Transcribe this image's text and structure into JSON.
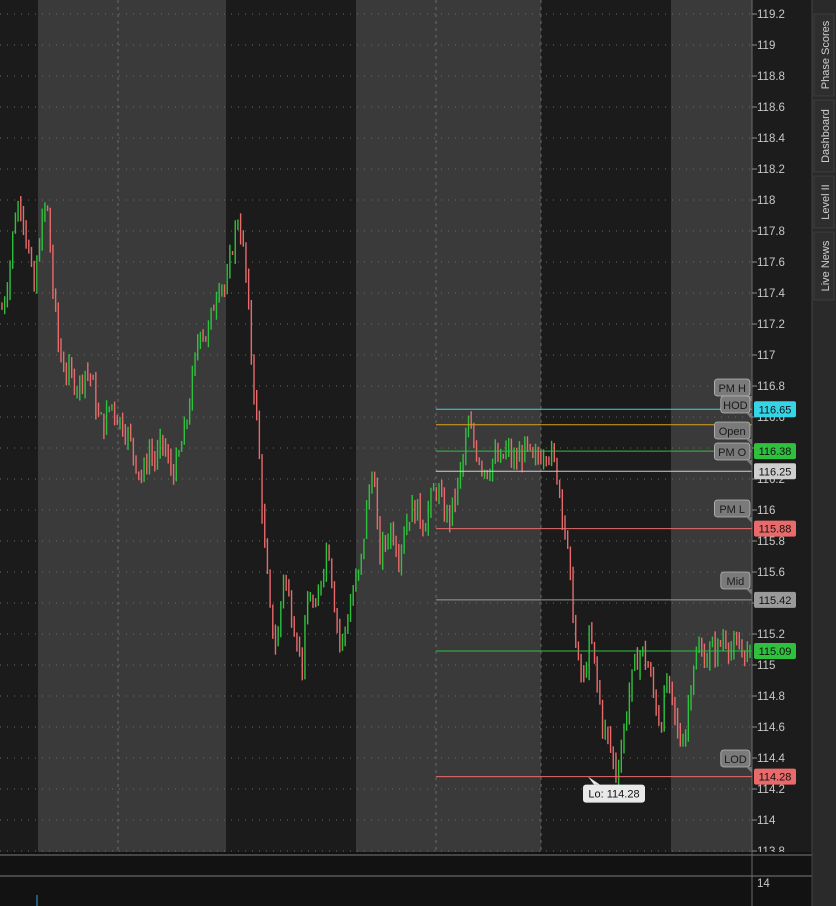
{
  "chart_data": {
    "type": "candlestick",
    "ylim": [
      113.8,
      119.2
    ],
    "y_ticks": [
      "113.8",
      "114",
      "114.2",
      "114.4",
      "114.6",
      "114.8",
      "115",
      "115.2",
      "115.4",
      "115.6",
      "115.8",
      "116",
      "116.2",
      "116.4",
      "116.6",
      "116.8",
      "117",
      "117.2",
      "117.4",
      "117.6",
      "117.8",
      "118",
      "118.2",
      "118.4",
      "118.6",
      "118.8",
      "119",
      "119.2"
    ],
    "lower_axis_label": "14",
    "levels": [
      {
        "name": "PM H",
        "value": 116.65,
        "color": "#35d4e6",
        "price_label": "",
        "text_color": "#111111"
      },
      {
        "name": "HOD",
        "value": 116.65,
        "color": "#35d4e6",
        "price_label": "116.65",
        "text_color": "#111111"
      },
      {
        "name": "Open",
        "value": 116.55,
        "color": "#d9a21a",
        "price_label": "",
        "text_color": "#111111"
      },
      {
        "name": "PM O",
        "value": 116.38,
        "color": "#2fc03e",
        "price_label": "116.38",
        "text_color": "#111111"
      },
      {
        "name": "",
        "value": 116.25,
        "color": "#cfcfcf",
        "price_label": "116.25",
        "text_color": "#111111"
      },
      {
        "name": "PM L",
        "value": 115.88,
        "color": "#e86a6a",
        "price_label": "115.88",
        "text_color": "#111111"
      },
      {
        "name": "Mid",
        "value": 115.42,
        "color": "#9a9a9a",
        "price_label": "115.42",
        "text_color": "#111111"
      },
      {
        "name": "",
        "value": 115.09,
        "color": "#2fc03e",
        "price_label": "115.09",
        "text_color": "#111111"
      },
      {
        "name": "LOD",
        "value": 114.28,
        "color": "#e86a6a",
        "price_label": "114.28",
        "text_color": "#111111"
      }
    ],
    "low_annotation": "Lo: 114.28",
    "series": [
      {
        "name": "",
        "color_up": "#2fc03e",
        "color_down": "#e86a6a",
        "path": [
          117.3,
          117.5,
          117.9,
          118.0,
          117.7,
          117.4,
          117.8,
          118.0,
          117.4,
          117.0,
          116.9,
          116.85,
          116.8,
          116.9,
          116.85,
          116.6,
          116.55,
          116.7,
          116.6,
          116.55,
          116.45,
          116.3,
          116.2,
          116.4,
          116.3,
          116.45,
          116.3,
          116.25,
          116.4,
          116.6,
          116.9,
          117.2,
          117.1,
          117.3,
          117.5,
          117.4,
          117.7,
          117.9,
          117.6,
          117.0,
          116.5,
          115.8,
          115.3,
          115.1,
          115.6,
          115.4,
          115.2,
          115.0,
          115.5,
          115.3,
          115.6,
          115.8,
          115.4,
          115.1,
          115.3,
          115.5,
          115.6,
          116.0,
          116.3,
          115.7,
          115.8,
          115.9,
          115.7,
          115.9,
          116.0,
          116.0,
          115.9,
          116.05,
          116.15,
          116.0,
          115.95,
          116.1,
          116.3,
          116.55,
          116.4,
          116.3,
          116.25,
          116.35,
          116.3,
          116.4,
          116.3,
          116.35,
          116.4,
          116.3,
          116.35,
          116.4,
          116.35,
          116.2,
          115.9,
          115.5,
          115.0,
          114.9,
          115.2,
          114.9,
          114.6,
          114.5,
          114.3,
          114.5,
          114.8,
          115.0,
          115.1,
          115.0,
          114.8,
          114.6,
          114.9,
          114.7,
          114.5,
          114.6,
          115.0,
          115.1,
          115.05,
          115.1,
          115.1,
          115.2,
          115.1,
          115.1,
          115.1,
          115.05
        ]
      }
    ]
  },
  "side_tabs": [
    "Phase Scores",
    "Dashboard",
    "Level II",
    "Live News"
  ]
}
